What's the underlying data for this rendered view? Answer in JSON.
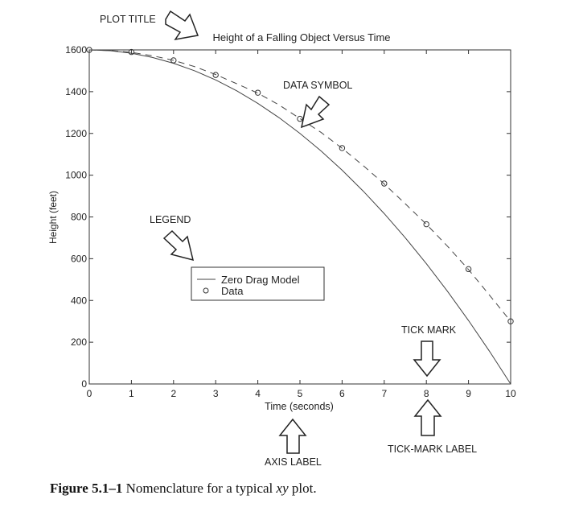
{
  "chart_data": {
    "type": "line",
    "title": "Height of a Falling Object Versus Time",
    "xlabel": "Time (seconds)",
    "ylabel": "Height (feet)",
    "xlim": [
      0,
      10
    ],
    "ylim": [
      0,
      1600
    ],
    "xticks": [
      0,
      1,
      2,
      3,
      4,
      5,
      6,
      7,
      8,
      9,
      10
    ],
    "yticks": [
      0,
      200,
      400,
      600,
      800,
      1000,
      1200,
      1400,
      1600
    ],
    "grid": false,
    "legend_position": "center-left",
    "series": [
      {
        "name": "Zero Drag Model",
        "style": "solid",
        "x": [
          0,
          0.5,
          1,
          1.5,
          2,
          2.5,
          3,
          3.5,
          4,
          4.5,
          5,
          5.5,
          6,
          6.5,
          7,
          7.5,
          8,
          8.5,
          9,
          9.5,
          10
        ],
        "values": [
          1600,
          1596,
          1584,
          1564,
          1536,
          1500,
          1456,
          1404,
          1344,
          1276,
          1200,
          1116,
          1024,
          924,
          816,
          700,
          576,
          444,
          304,
          156,
          0
        ]
      },
      {
        "name": "Data",
        "style": "circle-markers",
        "x": [
          0,
          1,
          2,
          3,
          4,
          5,
          6,
          7,
          8,
          9,
          10
        ],
        "values": [
          1600,
          1590,
          1550,
          1480,
          1395,
          1270,
          1130,
          960,
          765,
          550,
          300
        ]
      },
      {
        "name": "",
        "style": "dashed",
        "x": [
          0,
          0.5,
          1,
          1.5,
          2,
          2.5,
          3,
          3.5,
          4,
          4.5,
          5,
          5.5,
          6,
          6.5,
          7,
          7.5,
          8,
          8.5,
          9,
          9.5,
          10
        ],
        "values": [
          1600,
          1597,
          1588,
          1572,
          1550,
          1520,
          1482,
          1438,
          1393,
          1337,
          1271,
          1205,
          1129,
          1046,
          958,
          863,
          765,
          660,
          548,
          425,
          300
        ]
      }
    ],
    "annotations": {
      "plot_title": "PLOT TITLE",
      "data_symbol": "DATA SYMBOL",
      "legend": "LEGEND",
      "tick_mark": "TICK MARK",
      "axis_label": "AXIS LABEL",
      "tick_mark_label": "TICK-MARK LABEL"
    }
  },
  "caption": {
    "number": "Figure 5.1–1",
    "text_before": "Nomenclature for a typical",
    "italic": "xy",
    "text_after": "plot."
  },
  "colors": {
    "axis": "#333333",
    "line": "#444444",
    "text": "#222222"
  }
}
